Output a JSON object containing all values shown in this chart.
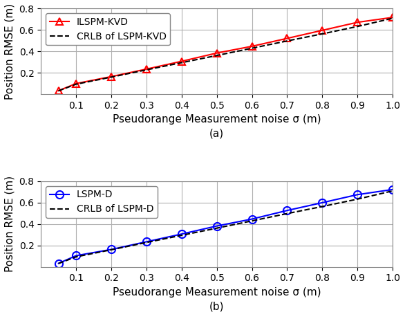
{
  "sigma": [
    0.05,
    0.1,
    0.2,
    0.3,
    0.4,
    0.5,
    0.6,
    0.7,
    0.8,
    0.9,
    1.0
  ],
  "ilspm_kvd": [
    0.033,
    0.1,
    0.165,
    0.235,
    0.308,
    0.385,
    0.448,
    0.522,
    0.597,
    0.672,
    0.718
  ],
  "crlb_kvd": [
    0.032,
    0.094,
    0.16,
    0.228,
    0.295,
    0.362,
    0.43,
    0.498,
    0.564,
    0.633,
    0.71
  ],
  "lspm_d": [
    0.033,
    0.105,
    0.163,
    0.235,
    0.307,
    0.382,
    0.447,
    0.527,
    0.6,
    0.675,
    0.723
  ],
  "crlb_d": [
    0.032,
    0.094,
    0.16,
    0.228,
    0.295,
    0.362,
    0.43,
    0.498,
    0.564,
    0.633,
    0.71
  ],
  "xlim": [
    0.0,
    1.0
  ],
  "ylim_a": [
    0.0,
    0.8
  ],
  "ylim_b": [
    0.0,
    0.8
  ],
  "yticks": [
    0.2,
    0.4,
    0.6,
    0.8
  ],
  "xticks": [
    0.1,
    0.2,
    0.3,
    0.4,
    0.5,
    0.6,
    0.7,
    0.8,
    0.9,
    1.0
  ],
  "xlabel": "Pseudorange Measurement noise σ (m)",
  "ylabel": "Position RMSE (m)",
  "label_ilspm_kvd": "ILSPM-KVD",
  "label_crlb_kvd": "CRLB of LSPM-KVD",
  "label_lspm_d": "LSPM-D",
  "label_crlb_d": "CRLB of LSPM-D",
  "color_red": "#FF0000",
  "color_blue": "#0000FF",
  "color_black": "#000000",
  "sublabel_a": "(a)",
  "sublabel_b": "(b)",
  "grid_color": "#b0b0b0",
  "bg_color": "#ffffff",
  "label_fontsize": 11,
  "tick_fontsize": 10,
  "legend_fontsize": 10
}
